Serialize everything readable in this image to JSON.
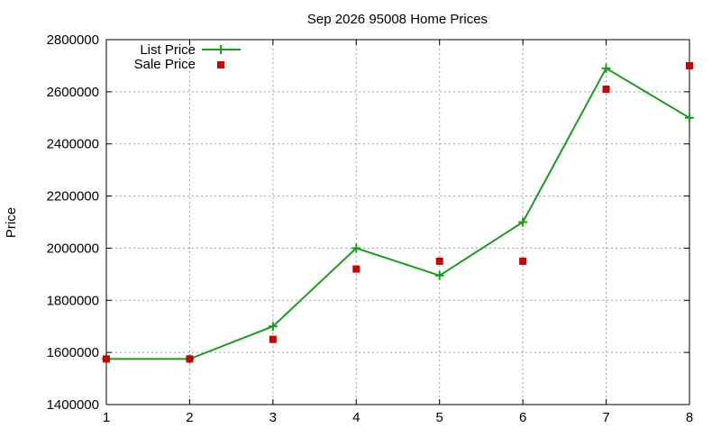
{
  "chart_data": {
    "type": "line",
    "title": "Sep 2026 95008 Home Prices",
    "xlabel": "",
    "ylabel": "Price",
    "x": [
      1,
      2,
      3,
      4,
      5,
      6,
      7,
      8
    ],
    "xlim": [
      1,
      8
    ],
    "ylim": [
      1400000,
      2800000
    ],
    "xticks": [
      "1",
      "2",
      "3",
      "4",
      "5",
      "6",
      "7",
      "8"
    ],
    "yticks": [
      "1400000",
      "1600000",
      "1800000",
      "2000000",
      "2200000",
      "2400000",
      "2600000",
      "2800000"
    ],
    "grid": true,
    "legend_position": "top-left",
    "series": [
      {
        "name": "List Price",
        "style": "line-with-plus-markers",
        "color": "#1a9e1a",
        "values": [
          1575000,
          1575000,
          1700000,
          2000000,
          1895000,
          2100000,
          2690000,
          2500000
        ]
      },
      {
        "name": "Sale Price",
        "style": "square-markers",
        "color": "#cc0000",
        "values": [
          1575000,
          1575000,
          1650000,
          1920000,
          1950000,
          1950000,
          2610000,
          2700000
        ]
      }
    ]
  }
}
